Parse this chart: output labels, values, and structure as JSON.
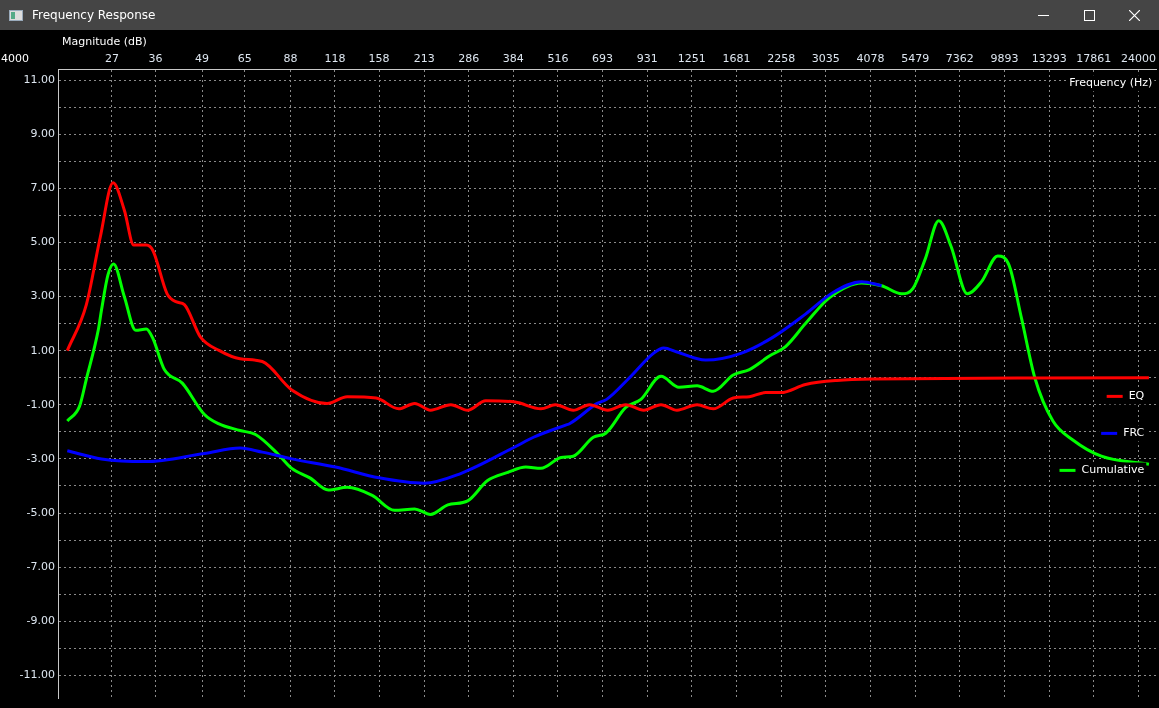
{
  "chart_data": {
    "type": "line",
    "title": "Frequency Response",
    "xlabel": "Frequency (Hz)",
    "ylabel": "Magnitude (dB)",
    "log": "x",
    "xlim": [
      18.9,
      27000
    ],
    "ylim": [
      -11.85,
      11.4
    ],
    "annotations": [
      "4000"
    ],
    "xticks": [
      27,
      36,
      49,
      65,
      88,
      118,
      158,
      213,
      286,
      384,
      516,
      693,
      931,
      1251,
      1681,
      2258,
      3035,
      4078,
      5479,
      7362,
      9893,
      13293,
      17861,
      24000
    ],
    "yticks": [
      {
        "value": -11,
        "label": "-11.00"
      },
      {
        "value": -10,
        "label": null
      },
      {
        "value": -9,
        "label": "-9.00"
      },
      {
        "value": -8,
        "label": null
      },
      {
        "value": -7,
        "label": "-7.00"
      },
      {
        "value": -6,
        "label": null
      },
      {
        "value": -5,
        "label": "-5.00"
      },
      {
        "value": -4,
        "label": null
      },
      {
        "value": -3,
        "label": "-3.00"
      },
      {
        "value": -2,
        "label": null
      },
      {
        "value": -1,
        "label": "-1.00"
      },
      {
        "value": 0,
        "label": null
      },
      {
        "value": 1,
        "label": "1.00"
      },
      {
        "value": 2,
        "label": null
      },
      {
        "value": 3,
        "label": "3.00"
      },
      {
        "value": 4,
        "label": null
      },
      {
        "value": 5,
        "label": "5.00"
      },
      {
        "value": 6,
        "label": null
      },
      {
        "value": 7,
        "label": "7.00"
      },
      {
        "value": 8,
        "label": null
      },
      {
        "value": 9,
        "label": "9.00"
      },
      {
        "value": 10,
        "label": null
      },
      {
        "value": 11,
        "label": "11.00"
      }
    ],
    "grid": true,
    "legend": "right",
    "marker": "none",
    "line_style": "solid",
    "series": [
      {
        "name": "EQ",
        "color": "#ff0000",
        "x": [
          20.1,
          22.8,
          25.0,
          27.2,
          29.3,
          31.2,
          33.9,
          35.4,
          38.9,
          41.4,
          43.6,
          48.5,
          55.0,
          63.0,
          73.0,
          88.7,
          112,
          128,
          155,
          180,
          200,
          222,
          254,
          284,
          320,
          389,
          461,
          507,
          571,
          636,
          717,
          808,
          910,
          1020,
          1134,
          1295,
          1441,
          1645,
          1830,
          2037,
          2253,
          2653,
          3265,
          4148,
          25720
        ],
        "values": [
          1.0,
          2.7,
          5.2,
          7.2,
          6.2,
          4.9,
          4.9,
          4.7,
          3.1,
          2.8,
          2.7,
          1.5,
          1.0,
          0.7,
          0.6,
          -0.45,
          -0.95,
          -0.7,
          -0.75,
          -1.15,
          -0.95,
          -1.2,
          -1.0,
          -1.2,
          -0.85,
          -0.9,
          -1.15,
          -1.0,
          -1.2,
          -1.0,
          -1.2,
          -1.0,
          -1.2,
          -1.0,
          -1.2,
          -1.0,
          -1.15,
          -0.75,
          -0.7,
          -0.55,
          -0.55,
          -0.25,
          -0.1,
          -0.05,
          0.0
        ]
      },
      {
        "name": "FRC",
        "color": "#0000ff",
        "x": [
          20.1,
          25.2,
          33.7,
          49.7,
          63.0,
          73.0,
          88.7,
          118.5,
          158,
          213,
          270,
          389,
          439,
          543,
          557,
          669,
          712,
          828,
          970,
          1039,
          1134,
          1370,
          1730,
          2142,
          2653,
          3184,
          3846,
          4390
        ],
        "values": [
          -2.7,
          -3.0,
          -3.1,
          -2.8,
          -2.6,
          -2.75,
          -3.0,
          -3.3,
          -3.7,
          -3.9,
          -3.55,
          -2.55,
          -2.2,
          -1.75,
          -1.7,
          -0.95,
          -0.8,
          0.0,
          0.9,
          1.1,
          0.95,
          0.65,
          0.9,
          1.5,
          2.35,
          3.15,
          3.55,
          3.4
        ]
      },
      {
        "name": "Cumulative",
        "color": "#00ff00",
        "x": [
          20.1,
          21.8,
          22.8,
          24.7,
          25.2,
          26.3,
          27.3,
          29.3,
          31.6,
          33.9,
          35.4,
          38.2,
          43.0,
          49.7,
          54.6,
          63.0,
          69.8,
          80.7,
          88.7,
          100,
          113,
          128,
          151,
          175,
          200,
          222,
          249,
          284,
          324,
          370,
          417,
          461,
          527,
          571,
          652,
          708,
          808,
          893,
          1020,
          1149,
          1295,
          1441,
          1645,
          1830,
          2089,
          2325,
          2653,
          3105,
          3846,
          4390,
          5010,
          5403,
          5862,
          6404,
          6950,
          7733,
          8500,
          9459,
          10200,
          11070,
          12090,
          13630,
          15550,
          18780,
          25720
        ],
        "values": [
          -1.6,
          -1.05,
          -0.05,
          1.8,
          2.5,
          3.8,
          4.2,
          3.0,
          1.75,
          1.8,
          1.45,
          0.3,
          -0.2,
          -1.35,
          -1.7,
          -1.95,
          -2.1,
          -2.8,
          -3.35,
          -3.7,
          -4.15,
          -4.05,
          -4.35,
          -4.9,
          -4.85,
          -5.05,
          -4.7,
          -4.55,
          -3.8,
          -3.5,
          -3.3,
          -3.35,
          -2.95,
          -2.9,
          -2.2,
          -2.05,
          -1.1,
          -0.8,
          0.05,
          -0.35,
          -0.3,
          -0.5,
          0.1,
          0.3,
          0.8,
          1.15,
          2.0,
          2.95,
          3.5,
          3.4,
          3.1,
          3.3,
          4.4,
          5.8,
          4.85,
          3.1,
          3.55,
          4.5,
          4.15,
          2.2,
          0.0,
          -1.6,
          -2.3,
          -2.9,
          -3.2
        ]
      }
    ]
  }
}
